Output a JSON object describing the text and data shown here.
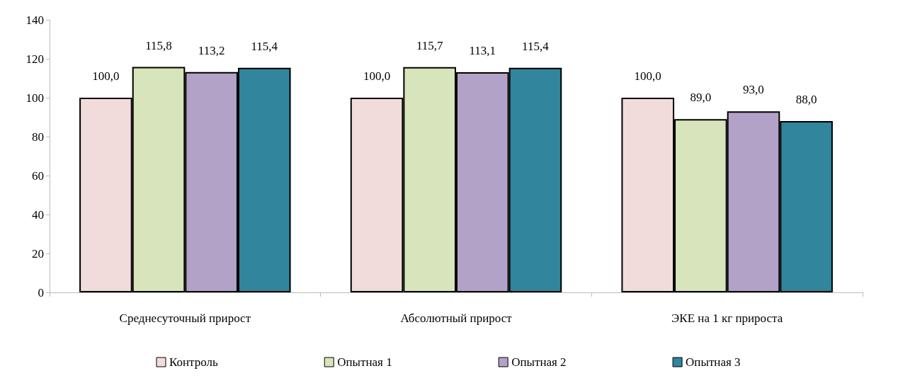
{
  "chart_data": {
    "type": "bar",
    "categories": [
      "Среднесуточный прирост",
      "Абсолютный прирост",
      "ЭКЕ на 1 кг прироста"
    ],
    "series": [
      {
        "name": "Контроль",
        "color": "#f2dcdb",
        "values": [
          100.0,
          100.0,
          100.0
        ],
        "value_labels": [
          "100,0",
          "100,0",
          "100,0"
        ]
      },
      {
        "name": "Опытная 1",
        "color": "#d7e4bc",
        "values": [
          115.8,
          115.7,
          89.0
        ],
        "value_labels": [
          "115,8",
          "115,7",
          "89,0"
        ]
      },
      {
        "name": "Опытная 2",
        "color": "#b3a2c7",
        "values": [
          113.2,
          113.1,
          93.0
        ],
        "value_labels": [
          "113,2",
          "113,1",
          "93,0"
        ]
      },
      {
        "name": "Опытная 3",
        "color": "#31859c",
        "values": [
          115.4,
          115.4,
          88.0
        ],
        "value_labels": [
          "115,4",
          "115,4",
          "88,0"
        ]
      }
    ],
    "ylim": [
      0,
      140
    ],
    "yticks": [
      0,
      20,
      40,
      60,
      80,
      100,
      120,
      140
    ],
    "grid": false,
    "legend": "bottom"
  }
}
